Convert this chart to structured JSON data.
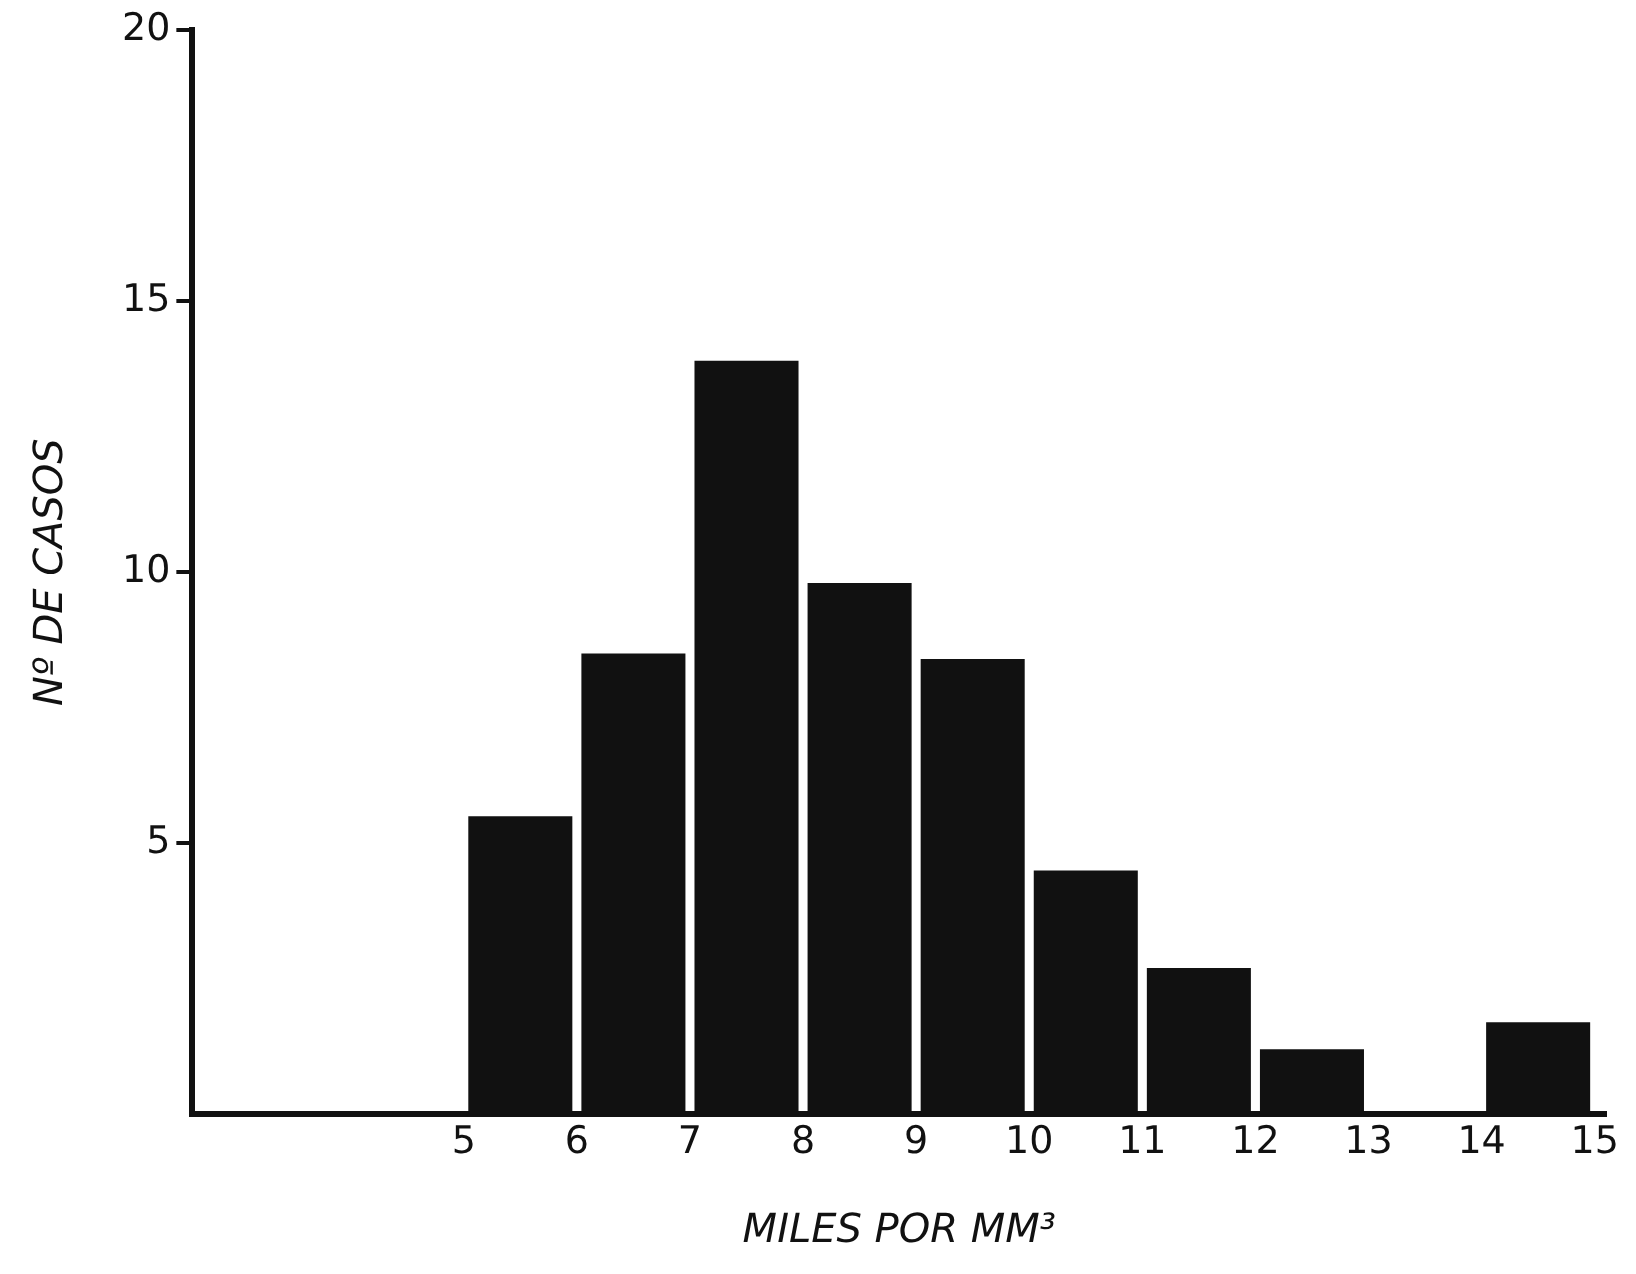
{
  "chart_data": {
    "type": "histogram",
    "xlabel": "MILES POR MM³",
    "ylabel": "Nº DE CASOS",
    "bins": [
      5,
      6,
      7,
      8,
      9,
      10,
      11,
      12,
      13,
      14,
      15
    ],
    "values": [
      5.5,
      8.5,
      13.9,
      9.8,
      8.4,
      4.5,
      2.7,
      1.2,
      0,
      1.7
    ],
    "color": "#111111",
    "xlim": [
      2.6,
      15.1
    ],
    "xticks": [
      5,
      6,
      7,
      8,
      9,
      10,
      11,
      12,
      13,
      14,
      15
    ],
    "ylim": [
      0,
      20
    ],
    "yticks": [
      5,
      10,
      15,
      20
    ],
    "grid": false,
    "legend": false
  }
}
